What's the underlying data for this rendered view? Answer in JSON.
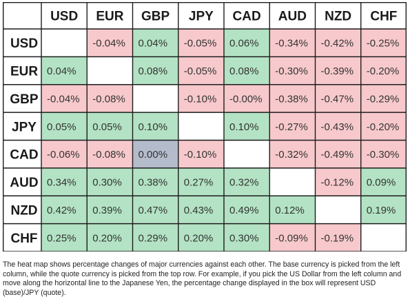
{
  "chart_data": {
    "type": "heatmap",
    "currencies": [
      "USD",
      "EUR",
      "GBP",
      "JPY",
      "CAD",
      "AUD",
      "NZD",
      "CHF"
    ],
    "columns": [
      "USD",
      "EUR",
      "GBP",
      "JPY",
      "CAD",
      "AUD",
      "NZD",
      "CHF"
    ],
    "rows": [
      "USD",
      "EUR",
      "GBP",
      "JPY",
      "CAD",
      "AUD",
      "NZD",
      "CHF"
    ],
    "cells": [
      [
        null,
        "-0.04%",
        "0.04%",
        "-0.05%",
        "0.06%",
        "-0.34%",
        "-0.42%",
        "-0.25%"
      ],
      [
        "0.04%",
        null,
        "0.08%",
        "-0.05%",
        "0.08%",
        "-0.30%",
        "-0.39%",
        "-0.20%"
      ],
      [
        "-0.04%",
        "-0.08%",
        null,
        "-0.10%",
        "-0.00%",
        "-0.38%",
        "-0.47%",
        "-0.29%"
      ],
      [
        "0.05%",
        "0.05%",
        "0.10%",
        null,
        "0.10%",
        "-0.27%",
        "-0.43%",
        "-0.20%"
      ],
      [
        "-0.06%",
        "-0.08%",
        "0.00%",
        "-0.10%",
        null,
        "-0.32%",
        "-0.49%",
        "-0.30%"
      ],
      [
        "0.34%",
        "0.30%",
        "0.38%",
        "0.27%",
        "0.32%",
        null,
        "-0.12%",
        "0.09%"
      ],
      [
        "0.42%",
        "0.39%",
        "0.47%",
        "0.43%",
        "0.49%",
        "0.12%",
        null,
        "0.19%"
      ],
      [
        "0.25%",
        "0.20%",
        "0.29%",
        "0.20%",
        "0.30%",
        "-0.09%",
        "-0.19%",
        null
      ]
    ],
    "colors": {
      "positive": "#b3e3c4",
      "negative": "#f7c9cc",
      "neutral": "#b4bccb",
      "empty": "#ffffff",
      "header_bg": "#ffffff",
      "grid_line": "#1c1c1c"
    }
  },
  "caption": "The heat map shows percentage changes of major currencies against each other. The base currency is picked from the left column, while the quote currency is picked from the top row. For example, if you pick the US Dollar from the left column and move along the horizontal line to the Japanese Yen, the percentage change displayed in the box will represent USD (base)/JPY (quote)."
}
